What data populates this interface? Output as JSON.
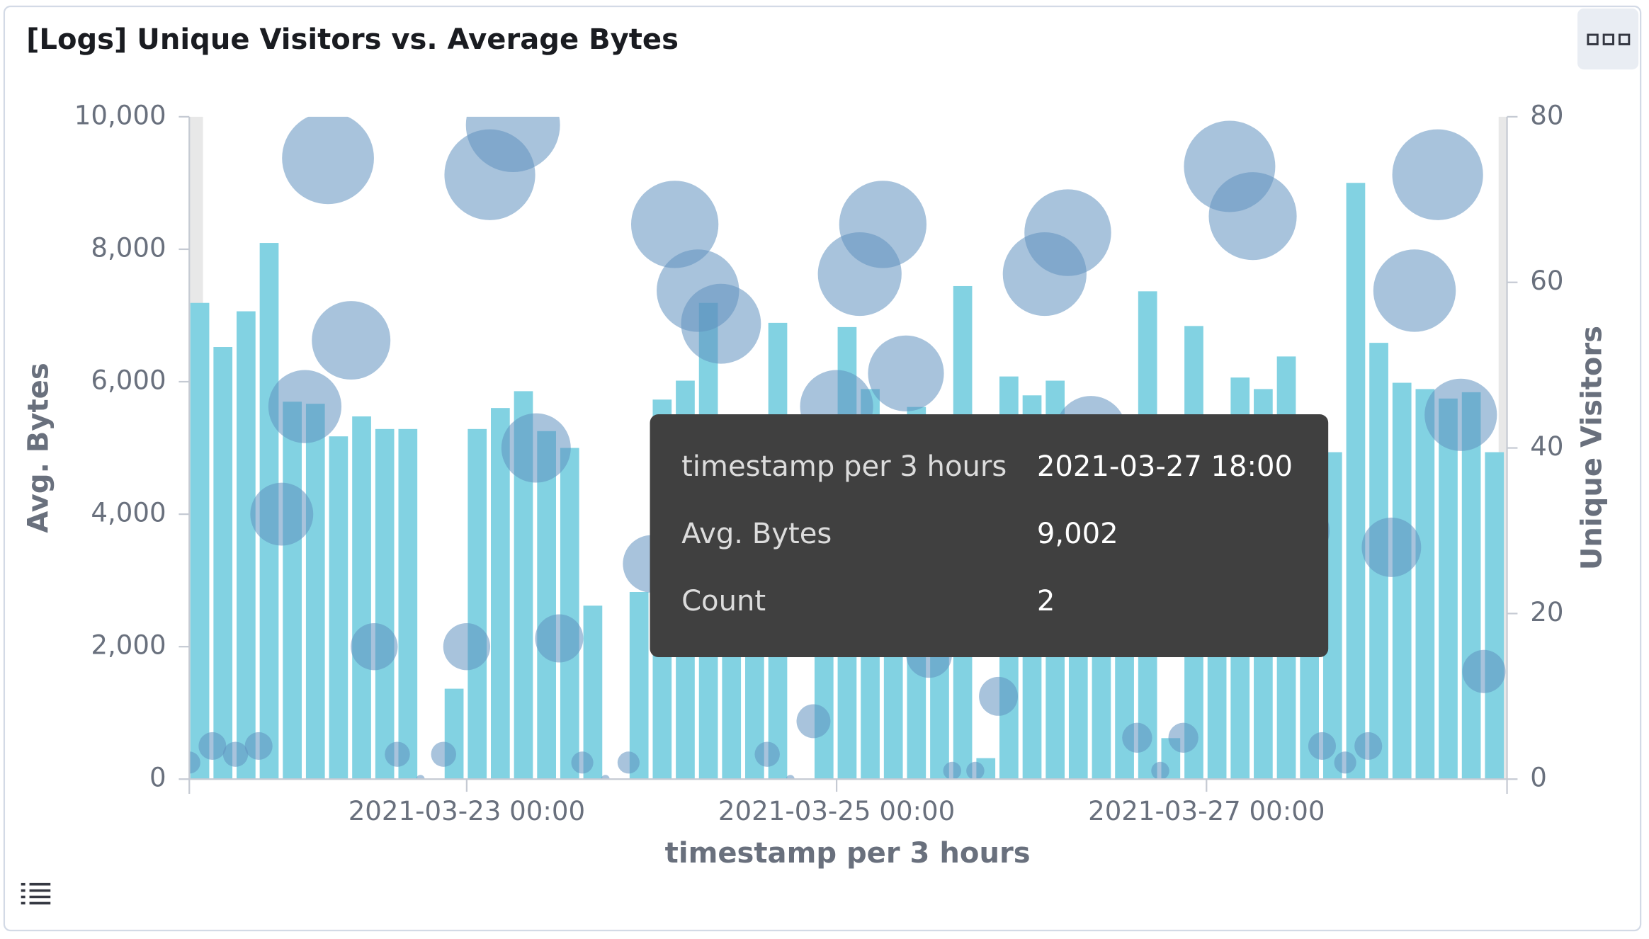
{
  "title": "[Logs] Unique Visitors vs. Average Bytes",
  "chart_data": {
    "type": "bar_bubble",
    "xlabel": "timestamp per 3 hours",
    "x": [
      "2021-03-21 12:00",
      "2021-03-21 15:00",
      "2021-03-21 18:00",
      "2021-03-21 21:00",
      "2021-03-22 00:00",
      "2021-03-22 03:00",
      "2021-03-22 06:00",
      "2021-03-22 09:00",
      "2021-03-22 12:00",
      "2021-03-22 15:00",
      "2021-03-22 18:00",
      "2021-03-22 21:00",
      "2021-03-23 00:00",
      "2021-03-23 03:00",
      "2021-03-23 06:00",
      "2021-03-23 09:00",
      "2021-03-23 12:00",
      "2021-03-23 15:00",
      "2021-03-23 18:00",
      "2021-03-23 21:00",
      "2021-03-24 00:00",
      "2021-03-24 03:00",
      "2021-03-24 06:00",
      "2021-03-24 09:00",
      "2021-03-24 12:00",
      "2021-03-24 15:00",
      "2021-03-24 18:00",
      "2021-03-24 21:00",
      "2021-03-25 00:00",
      "2021-03-25 03:00",
      "2021-03-25 06:00",
      "2021-03-25 09:00",
      "2021-03-25 12:00",
      "2021-03-25 15:00",
      "2021-03-25 18:00",
      "2021-03-25 21:00",
      "2021-03-26 00:00",
      "2021-03-26 03:00",
      "2021-03-26 06:00",
      "2021-03-26 09:00",
      "2021-03-26 12:00",
      "2021-03-26 15:00",
      "2021-03-26 18:00",
      "2021-03-26 21:00",
      "2021-03-27 00:00",
      "2021-03-27 03:00",
      "2021-03-27 06:00",
      "2021-03-27 09:00",
      "2021-03-27 12:00",
      "2021-03-27 15:00",
      "2021-03-27 18:00",
      "2021-03-27 21:00",
      "2021-03-28 00:00",
      "2021-03-28 03:00",
      "2021-03-28 06:00",
      "2021-03-28 09:00",
      "2021-03-28 12:00"
    ],
    "xlim": [
      "2021-03-21 12:00",
      "2021-03-28 15:00"
    ],
    "xticks": [
      "2021-03-23 00:00",
      "2021-03-25 00:00",
      "2021-03-27 00:00"
    ],
    "series": [
      {
        "name": "Avg. Bytes",
        "type": "bar",
        "color": "#82d2e2",
        "values": [
          7190,
          6524,
          7063,
          8095,
          5698,
          5667,
          5175,
          5476,
          5286,
          5286,
          null,
          1365,
          5286,
          5603,
          5857,
          5254,
          5000,
          2619,
          null,
          2825,
          5730,
          6016,
          7190,
          5500,
          5000,
          6889,
          null,
          4500,
          6825,
          5889,
          4800,
          5619,
          4600,
          7444,
          317,
          6079,
          5794,
          6016,
          5000,
          4800,
          5000,
          7365,
          619,
          6841,
          5000,
          6063,
          5889,
          6381,
          5000,
          4936,
          9002,
          6587,
          5984,
          5889,
          5746,
          5841,
          4936
        ]
      },
      {
        "name": "Unique Visitors",
        "type": "bubble",
        "axis": "y2",
        "color": "#6092c0",
        "values": [
          2,
          4,
          3,
          4,
          32,
          45,
          75,
          53,
          16,
          3,
          0,
          3,
          16,
          73,
          79,
          40,
          17,
          2,
          0,
          2,
          26,
          67,
          59,
          55,
          30,
          3,
          0,
          7,
          45,
          61,
          67,
          49,
          15,
          1,
          1,
          10,
          30,
          61,
          66,
          42,
          30,
          5,
          1,
          5,
          30,
          74,
          68,
          30,
          30,
          4,
          2,
          4,
          28,
          59,
          73,
          44,
          13
        ]
      }
    ],
    "ylim": [
      0,
      10000
    ],
    "yticks": [
      0,
      {
        "value": 2000,
        "label": "2,000"
      },
      {
        "value": 4000,
        "label": "4,000"
      },
      {
        "value": 6000,
        "label": "6,000"
      },
      {
        "value": 8000,
        "label": "8,000"
      },
      {
        "value": 10000,
        "label": "10,000"
      }
    ],
    "y2lim": [
      0,
      80
    ],
    "y2ticks": [
      0,
      20,
      40,
      60,
      80
    ],
    "tooltip": {
      "rows": [
        [
          "timestamp per 3 hours",
          "2021-03-27 18:00"
        ],
        [
          "Avg. Bytes",
          "9,002"
        ],
        [
          "Count",
          2
        ]
      ]
    }
  }
}
